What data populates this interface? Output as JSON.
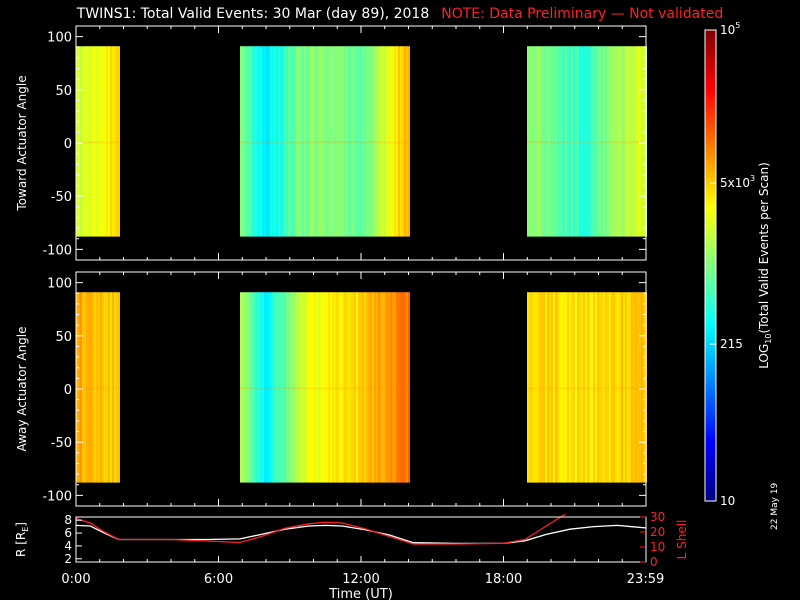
{
  "title": {
    "main": "TWINS1: Total Valid Events: 30 Mar (day  89), 2018",
    "note": "NOTE: Data Preliminary — Not validated"
  },
  "date_stamp": "22 May 19",
  "colors": {
    "background": "#000000",
    "axis": "#ffffff",
    "note": "#ff2020",
    "r_line": "#ffffff",
    "lshell_line": "#ff2020"
  },
  "chart_data": [
    {
      "type": "heatmap",
      "name": "toward",
      "ylabel": "Toward Actuator Angle",
      "ylim": [
        -110,
        110
      ],
      "yticks": [
        100,
        50,
        0,
        -50,
        -100
      ],
      "xlim": [
        0,
        24
      ],
      "x_unit": "hours UT",
      "angle_range": [
        -88,
        91
      ],
      "data_blocks_hours": [
        [
          0,
          1.8
        ],
        [
          6.9,
          14.0
        ],
        [
          19.0,
          24.0
        ]
      ],
      "profile_log10": [
        [
          0.0,
          3.3
        ],
        [
          0.3,
          3.35
        ],
        [
          0.8,
          3.4
        ],
        [
          1.3,
          3.55
        ],
        [
          1.8,
          3.6
        ],
        [
          6.9,
          3.1
        ],
        [
          7.5,
          2.6
        ],
        [
          8.0,
          2.45
        ],
        [
          8.5,
          2.6
        ],
        [
          9.2,
          2.9
        ],
        [
          10.0,
          3.05
        ],
        [
          11.0,
          3.0
        ],
        [
          12.0,
          2.9
        ],
        [
          12.6,
          3.1
        ],
        [
          13.2,
          3.45
        ],
        [
          13.6,
          3.65
        ],
        [
          14.0,
          3.75
        ],
        [
          19.0,
          3.1
        ],
        [
          19.8,
          3.0
        ],
        [
          20.7,
          2.8
        ],
        [
          21.4,
          2.6
        ],
        [
          22.0,
          2.9
        ],
        [
          22.8,
          3.15
        ],
        [
          23.5,
          3.3
        ],
        [
          24.0,
          3.35
        ]
      ]
    },
    {
      "type": "heatmap",
      "name": "away",
      "ylabel": "Away Actuator Angle",
      "ylim": [
        -110,
        110
      ],
      "yticks": [
        100,
        50,
        0,
        -50,
        -100
      ],
      "xlim": [
        0,
        24
      ],
      "x_unit": "hours UT",
      "angle_range": [
        -88,
        91
      ],
      "data_blocks_hours": [
        [
          0,
          1.8
        ],
        [
          6.9,
          14.0
        ],
        [
          19.0,
          24.0
        ]
      ],
      "profile_log10": [
        [
          0.0,
          3.85
        ],
        [
          0.5,
          3.8
        ],
        [
          1.0,
          3.75
        ],
        [
          1.8,
          3.7
        ],
        [
          6.9,
          3.3
        ],
        [
          7.5,
          2.7
        ],
        [
          8.0,
          2.5
        ],
        [
          8.6,
          2.8
        ],
        [
          9.3,
          3.2
        ],
        [
          10.0,
          3.45
        ],
        [
          11.0,
          3.55
        ],
        [
          12.0,
          3.65
        ],
        [
          13.0,
          3.9
        ],
        [
          14.0,
          4.05
        ],
        [
          19.0,
          3.6
        ],
        [
          20.0,
          3.65
        ],
        [
          21.0,
          3.6
        ],
        [
          22.0,
          3.65
        ],
        [
          23.0,
          3.7
        ],
        [
          24.0,
          3.72
        ]
      ]
    },
    {
      "type": "line",
      "name": "orbit",
      "ylabel_left": "R [R",
      "ylabel_left_sub": "E",
      "ylabel_left_end": "]",
      "ylabel_right": "L Shell",
      "yticks_left": [
        8,
        6,
        4,
        2
      ],
      "ylim_left": [
        1.5,
        8.5
      ],
      "yticks_right": [
        30,
        20,
        10,
        0
      ],
      "ylim_right": [
        0,
        30
      ],
      "xlim": [
        0,
        24
      ],
      "xticks": [
        "0:00",
        "6:00",
        "12:00",
        "18:00",
        "23:59"
      ],
      "xtick_hours": [
        0,
        6,
        12,
        18,
        23.98
      ],
      "xlabel": "Time (UT)",
      "series": [
        {
          "name": "R",
          "axis": "left",
          "x": [
            0,
            0.6,
            1.2,
            1.8,
            2.5,
            4,
            5.5,
            6.9,
            7.8,
            8.8,
            9.8,
            10.5,
            11.2,
            12.2,
            13.2,
            14.2,
            16,
            18,
            18.9,
            19.8,
            20.8,
            21.8,
            22.8,
            23.98
          ],
          "y": [
            7.2,
            7.1,
            6.0,
            5.0,
            5.0,
            5.0,
            5.0,
            5.1,
            5.8,
            6.6,
            7.1,
            7.2,
            7.1,
            6.5,
            5.7,
            4.5,
            4.4,
            4.4,
            4.8,
            5.8,
            6.6,
            7.0,
            7.2,
            6.8
          ]
        },
        {
          "name": "L Shell",
          "axis": "right",
          "x": [
            0,
            0.6,
            1.2,
            1.8,
            2.5,
            4,
            5.5,
            6.9,
            7.8,
            8.8,
            9.8,
            10.5,
            11.2,
            12.2,
            13.2,
            14.2,
            16,
            18,
            18.9,
            19.5,
            20.1,
            20.6
          ],
          "y": [
            29,
            26,
            20,
            15,
            15,
            15,
            14,
            13,
            17,
            22.5,
            25.5,
            26.5,
            26,
            22,
            17,
            12,
            12,
            12.5,
            15,
            21,
            27,
            32
          ]
        }
      ]
    }
  ],
  "colorbar": {
    "label": "LOG",
    "label_sub": "10",
    "label_rest": "(Total Valid Events per Scan)",
    "log_min": 1.0,
    "log_max": 5.0,
    "ticks": [
      {
        "log": 1.0,
        "base": "10",
        "sup": ""
      },
      {
        "log": 2.3324,
        "base": "215",
        "sup": ""
      },
      {
        "log": 3.699,
        "base": "5x10",
        "sup": "3"
      },
      {
        "log": 5.0,
        "base": "10",
        "sup": "5"
      }
    ]
  }
}
